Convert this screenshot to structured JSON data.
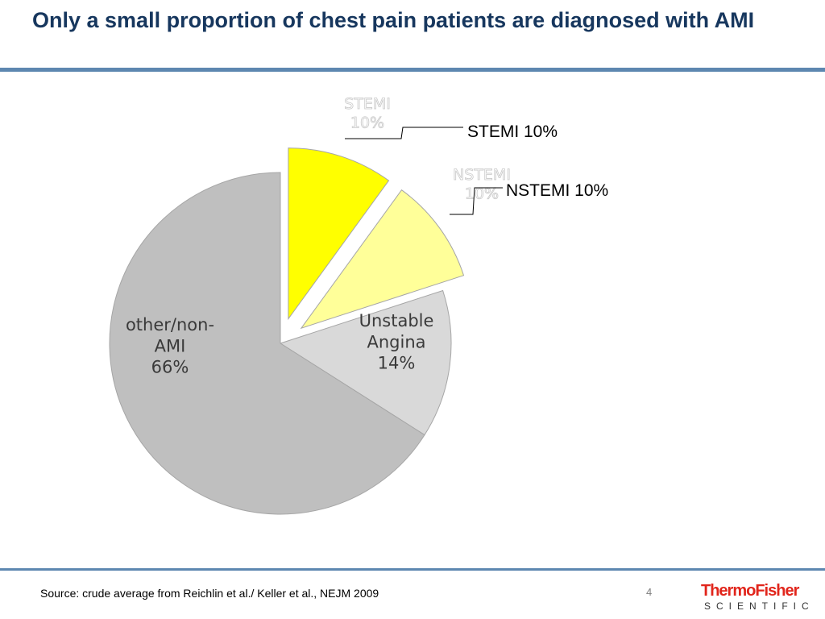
{
  "slide": {
    "title": "Only a small proportion of chest pain patients are diagnosed with AMI",
    "source": "Source: crude average from Reichlin et al./ Keller et al., NEJM 2009",
    "page_number": "4",
    "logo_top": "ThermoFisher",
    "logo_bottom": "SCIENTIFIC"
  },
  "colors": {
    "rule": "#5d87b0",
    "title": "#17375e",
    "logo_red": "#e1251b"
  },
  "chart_data": {
    "type": "pie",
    "title": "",
    "slices": [
      {
        "label_lines": [
          "STEMI",
          "10%"
        ],
        "value": 10,
        "color": "#ffff00",
        "exploded": true,
        "callout": "STEMI 10%"
      },
      {
        "label_lines": [
          "NSTEMI",
          "10%"
        ],
        "value": 10,
        "color": "#ffff99",
        "exploded": true,
        "callout": "NSTEMI 10%"
      },
      {
        "label_lines": [
          "Unstable",
          "Angina",
          "14%"
        ],
        "value": 14,
        "color": "#d9d9d9",
        "exploded": false,
        "callout": ""
      },
      {
        "label_lines": [
          "other/non-",
          "AMI",
          "66%"
        ],
        "value": 66,
        "color": "#bfbfbf",
        "exploded": false,
        "callout": ""
      }
    ],
    "start_angle_deg": 0,
    "direction": "clockwise",
    "legend": "none"
  }
}
